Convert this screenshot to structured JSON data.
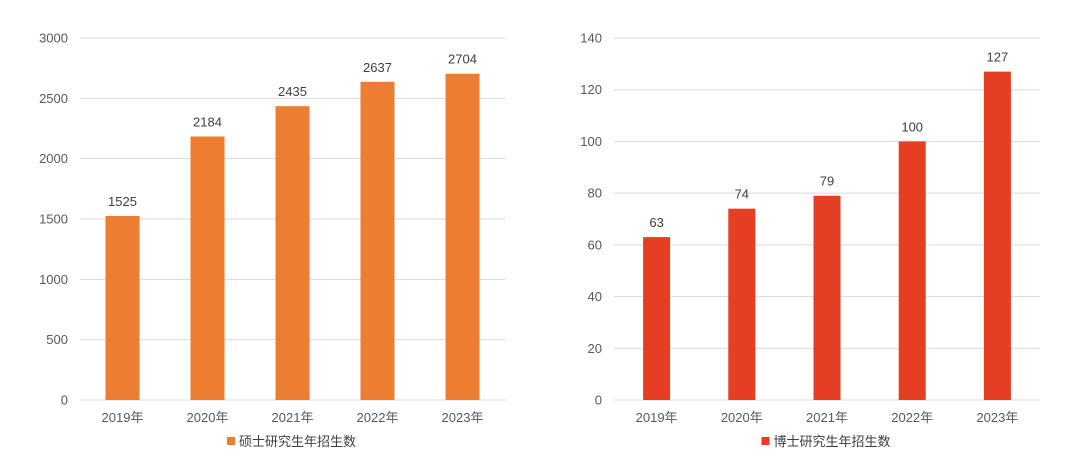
{
  "chart_data": [
    {
      "type": "bar",
      "categories": [
        "2019年",
        "2020年",
        "2021年",
        "2022年",
        "2023年"
      ],
      "series": [
        {
          "name": "硕士研究生年招生数",
          "values": [
            1525,
            2184,
            2435,
            2637,
            2704
          ],
          "color": "#ED7D31"
        }
      ],
      "ylim": [
        0,
        3000
      ],
      "yticks": [
        0,
        500,
        1000,
        1500,
        2000,
        2500,
        3000
      ],
      "grid": true,
      "legend": "bottom",
      "data_labels": true
    },
    {
      "type": "bar",
      "categories": [
        "2019年",
        "2020年",
        "2021年",
        "2022年",
        "2023年"
      ],
      "series": [
        {
          "name": "博士研究生年招生数",
          "values": [
            63,
            74,
            79,
            100,
            127
          ],
          "color": "#E53E22"
        }
      ],
      "ylim": [
        0,
        140
      ],
      "yticks": [
        0,
        20,
        40,
        60,
        80,
        100,
        120,
        140
      ],
      "grid": true,
      "legend": "bottom",
      "data_labels": true
    }
  ]
}
